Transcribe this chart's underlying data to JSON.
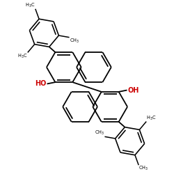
{
  "bg_color": "#ffffff",
  "bond_color": "#000000",
  "oh_color": "#cc0000",
  "lw": 1.3,
  "figsize": [
    2.5,
    2.5
  ],
  "dpi": 100,
  "xlim": [
    0,
    100
  ],
  "ylim": [
    0,
    100
  ]
}
